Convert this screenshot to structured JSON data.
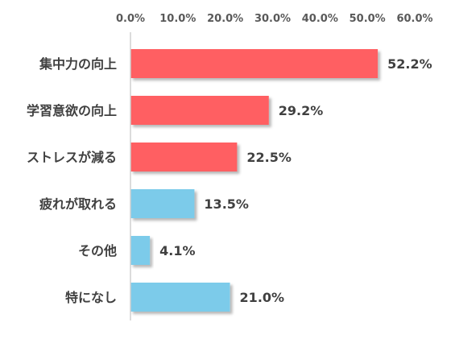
{
  "chart_data": {
    "type": "bar",
    "orientation": "horizontal",
    "categories": [
      "集中力の向上",
      "学習意欲の向上",
      "ストレスが減る",
      "疲れが取れる",
      "その他",
      "特になし"
    ],
    "values": [
      52.2,
      29.2,
      22.5,
      13.5,
      4.1,
      21.0
    ],
    "data_labels": [
      "52.2%",
      "29.2%",
      "22.5%",
      "13.5%",
      "4.1%",
      "21.0%"
    ],
    "bar_colors": [
      "#ff5e62",
      "#ff5e62",
      "#ff5e62",
      "#7ccbea",
      "#7ccbea",
      "#7ccbea"
    ],
    "xlim": [
      0,
      60
    ],
    "x_ticks": [
      0,
      10,
      20,
      30,
      40,
      50,
      60
    ],
    "x_tick_labels": [
      "0.0%",
      "10.0%",
      "20.0%",
      "30.0%",
      "40.0%",
      "50.0%",
      "60.0%"
    ],
    "x_axis_position": "top",
    "grid": false,
    "title": "",
    "xlabel": "",
    "ylabel": ""
  }
}
